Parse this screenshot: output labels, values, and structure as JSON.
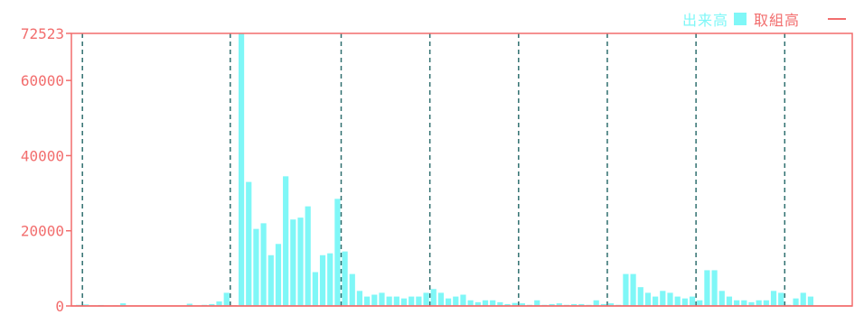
{
  "colors": {
    "axis": "#f26d6d",
    "volume": "#7ff7f7",
    "open_interest": "#f26d6d",
    "separator": "#2f6f6f",
    "background": "#ffffff"
  },
  "legend": {
    "volume_label": "出来高",
    "open_interest_label": "取組高",
    "volume_icon": "square-swatch-icon",
    "open_interest_icon": "dash-line-icon"
  },
  "chart_data": {
    "type": "bar",
    "y_max_label": "72523",
    "ylim": [
      0,
      72523
    ],
    "yticks": [
      {
        "value": 0,
        "label": "0"
      },
      {
        "value": 20000,
        "label": "20000"
      },
      {
        "value": 40000,
        "label": "40000"
      },
      {
        "value": 60000,
        "label": "60000"
      },
      {
        "value": 72523,
        "label": "72523"
      }
    ],
    "grid": "vertical dashed period separators",
    "legend_placement": "top-right",
    "separators_after_bar_index": [
      0,
      20,
      35,
      47,
      59,
      71,
      83,
      95,
      107
    ],
    "series": [
      {
        "name": "出来高",
        "values": [
          300,
          400,
          150,
          250,
          100,
          150,
          700,
          100,
          50,
          100,
          50,
          100,
          50,
          100,
          50,
          600,
          100,
          300,
          500,
          1200,
          3500,
          200,
          72523,
          33000,
          20500,
          22000,
          13500,
          16500,
          34500,
          23000,
          23500,
          26500,
          9000,
          13500,
          14000,
          28500,
          14500,
          8500,
          4000,
          2500,
          3000,
          3500,
          2500,
          2500,
          2000,
          2500,
          2500,
          3500,
          4500,
          3500,
          2000,
          2500,
          3000,
          1500,
          1000,
          1500,
          1500,
          1000,
          500,
          800,
          700,
          300,
          1500,
          300,
          500,
          700,
          300,
          500,
          500,
          300,
          1500,
          500,
          700,
          300,
          8500,
          8500,
          5000,
          3500,
          2500,
          4000,
          3500,
          2500,
          2000,
          2500,
          1500,
          9500,
          9500,
          4000,
          2500,
          1500,
          1500,
          1000,
          1500,
          1500,
          4000,
          3500,
          300,
          2000,
          3500,
          2500
        ]
      }
    ]
  }
}
